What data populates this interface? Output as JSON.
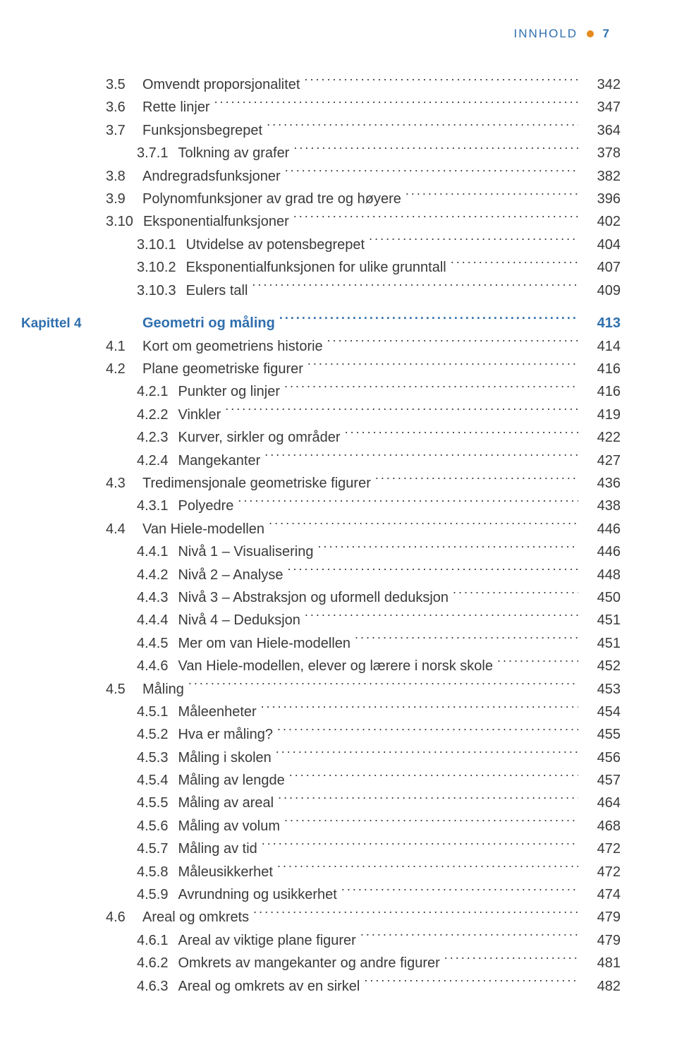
{
  "header": {
    "label": "INNHOLD",
    "page": "7"
  },
  "colors": {
    "heading": "#2f6fae",
    "dot": "#e48a1f",
    "text": "#3a3a3a",
    "background": "#ffffff"
  },
  "entries": [
    {
      "level": 0,
      "num": "3.5",
      "title": "Omvendt proporsjonalitet",
      "page": "342"
    },
    {
      "level": 0,
      "num": "3.6",
      "title": "Rette linjer",
      "page": "347"
    },
    {
      "level": 0,
      "num": "3.7",
      "title": "Funksjonsbegrepet",
      "page": "364"
    },
    {
      "level": 1,
      "num": "3.7.1",
      "title": "Tolkning av grafer",
      "page": "378"
    },
    {
      "level": 0,
      "num": "3.8",
      "title": "Andregradsfunksjoner",
      "page": "382"
    },
    {
      "level": 0,
      "num": "3.9",
      "title": "Polynomfunksjoner av grad tre og høyere",
      "page": "396"
    },
    {
      "level": 0,
      "num": "3.10",
      "title": "Eksponentialfunksjoner",
      "page": "402"
    },
    {
      "level": 1,
      "num": "3.10.1",
      "title": "Utvidelse av potensbegrepet",
      "page": "404"
    },
    {
      "level": 1,
      "num": "3.10.2",
      "title": "Eksponentialfunksjonen for ulike grunntall",
      "page": "407"
    },
    {
      "level": 1,
      "num": "3.10.3",
      "title": "Eulers tall",
      "page": "409"
    },
    {
      "chapter": true,
      "leftLabel": "Kapittel 4",
      "num": "",
      "title": "Geometri og måling",
      "page": "413"
    },
    {
      "level": 0,
      "num": "4.1",
      "title": "Kort om geometriens historie",
      "page": "414"
    },
    {
      "level": 0,
      "num": "4.2",
      "title": "Plane geometriske figurer",
      "page": "416"
    },
    {
      "level": 1,
      "num": "4.2.1",
      "title": "Punkter og linjer",
      "page": "416"
    },
    {
      "level": 1,
      "num": "4.2.2",
      "title": "Vinkler",
      "page": "419"
    },
    {
      "level": 1,
      "num": "4.2.3",
      "title": "Kurver, sirkler og områder",
      "page": "422"
    },
    {
      "level": 1,
      "num": "4.2.4",
      "title": "Mangekanter",
      "page": "427"
    },
    {
      "level": 0,
      "num": "4.3",
      "title": "Tredimensjonale geometriske figurer",
      "page": "436"
    },
    {
      "level": 1,
      "num": "4.3.1",
      "title": "Polyedre",
      "page": "438"
    },
    {
      "level": 0,
      "num": "4.4",
      "title": "Van Hiele-modellen",
      "page": "446"
    },
    {
      "level": 1,
      "num": "4.4.1",
      "title": "Nivå 1 – Visualisering",
      "page": "446"
    },
    {
      "level": 1,
      "num": "4.4.2",
      "title": "Nivå 2 – Analyse",
      "page": "448"
    },
    {
      "level": 1,
      "num": "4.4.3",
      "title": "Nivå 3 – Abstraksjon og uformell deduksjon",
      "page": "450"
    },
    {
      "level": 1,
      "num": "4.4.4",
      "title": "Nivå 4 – Deduksjon",
      "page": "451"
    },
    {
      "level": 1,
      "num": "4.4.5",
      "title": "Mer om van Hiele-modellen",
      "page": "451"
    },
    {
      "level": 1,
      "num": "4.4.6",
      "title": "Van Hiele-modellen, elever og lærere i norsk skole",
      "page": "452"
    },
    {
      "level": 0,
      "num": "4.5",
      "title": "Måling",
      "page": "453"
    },
    {
      "level": 1,
      "num": "4.5.1",
      "title": "Måleenheter",
      "page": "454"
    },
    {
      "level": 1,
      "num": "4.5.2",
      "title": "Hva er måling?",
      "page": "455"
    },
    {
      "level": 1,
      "num": "4.5.3",
      "title": "Måling i skolen",
      "page": "456"
    },
    {
      "level": 1,
      "num": "4.5.4",
      "title": "Måling av lengde",
      "page": "457"
    },
    {
      "level": 1,
      "num": "4.5.5",
      "title": "Måling av areal",
      "page": "464"
    },
    {
      "level": 1,
      "num": "4.5.6",
      "title": "Måling av volum",
      "page": "468"
    },
    {
      "level": 1,
      "num": "4.5.7",
      "title": "Måling av tid",
      "page": "472"
    },
    {
      "level": 1,
      "num": "4.5.8",
      "title": "Måleusikkerhet",
      "page": "472"
    },
    {
      "level": 1,
      "num": "4.5.9",
      "title": "Avrundning og usikkerhet",
      "page": "474"
    },
    {
      "level": 0,
      "num": "4.6",
      "title": "Areal og omkrets",
      "page": "479"
    },
    {
      "level": 1,
      "num": "4.6.1",
      "title": "Areal av viktige plane figurer",
      "page": "479"
    },
    {
      "level": 1,
      "num": "4.6.2",
      "title": "Omkrets av mangekanter og andre figurer",
      "page": "481"
    },
    {
      "level": 1,
      "num": "4.6.3",
      "title": "Areal og omkrets av en sirkel",
      "page": "482"
    }
  ]
}
